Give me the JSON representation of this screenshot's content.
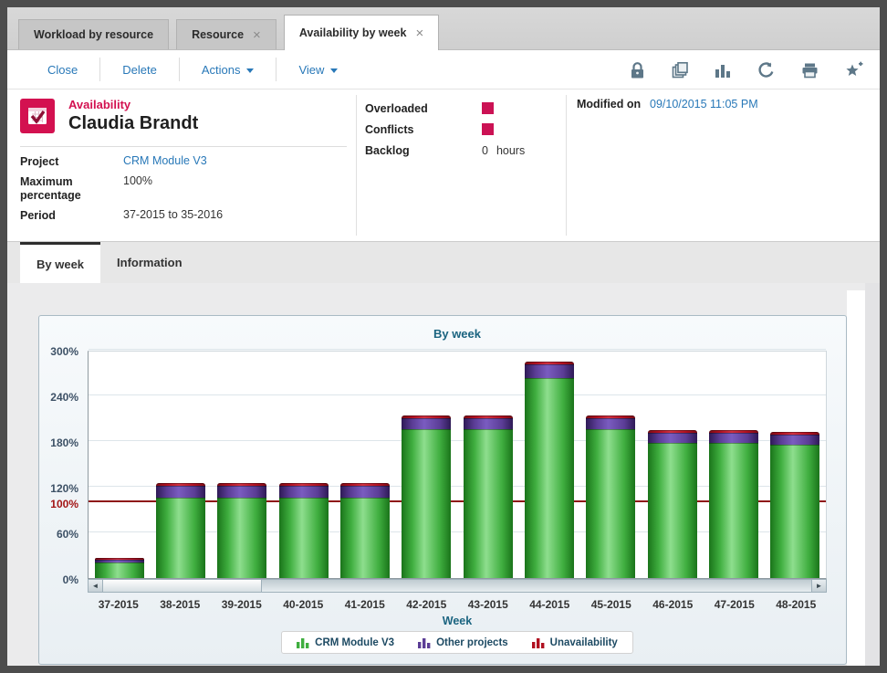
{
  "tabs": [
    {
      "label": "Workload by resource",
      "closable": false,
      "active": false
    },
    {
      "label": "Resource",
      "closable": true,
      "active": false
    },
    {
      "label": "Availability by week",
      "closable": true,
      "active": true
    }
  ],
  "glyphs": {
    "tab_close": "×",
    "scroll_left": "◄",
    "scroll_right": "►"
  },
  "toolbar": {
    "buttons": [
      {
        "label": "Close",
        "dropdown": false
      },
      {
        "label": "Delete",
        "dropdown": false
      },
      {
        "label": "Actions",
        "dropdown": true
      },
      {
        "label": "View",
        "dropdown": true
      }
    ],
    "icons": [
      "lock-icon",
      "copy-icon",
      "chart-icon",
      "undo-icon",
      "print-icon",
      "star-plus-icon"
    ]
  },
  "header": {
    "type_label": "Availability",
    "title": "Claudia Brandt",
    "fields": [
      {
        "label": "Project",
        "value": "CRM Module V3",
        "is_link": true
      },
      {
        "label": "Maximum percentage",
        "value": "100%",
        "is_link": false
      },
      {
        "label": "Period",
        "value": "37-2015 to 35-2016",
        "is_link": false
      }
    ],
    "status": [
      {
        "label": "Overloaded",
        "type": "flag"
      },
      {
        "label": "Conflicts",
        "type": "flag"
      },
      {
        "label": "Backlog",
        "value": "0",
        "unit": "hours"
      }
    ],
    "modified": {
      "label": "Modified on",
      "value": "09/10/2015 11:05 PM"
    }
  },
  "subtabs": [
    {
      "label": "By week",
      "active": true
    },
    {
      "label": "Information",
      "active": false
    }
  ],
  "colors": {
    "accent_crimson": "#d31150",
    "flag_square": "#cb1254",
    "link_blue": "#2878b8",
    "reference_red": "#8e1717",
    "title_teal": "#1b6480"
  },
  "chart_data": {
    "type": "bar",
    "stacked": true,
    "title": "By week",
    "xlabel": "Week",
    "ylabel": "",
    "ylim": [
      0,
      300
    ],
    "yticks": [
      0,
      60,
      100,
      120,
      180,
      240,
      300
    ],
    "ytick_suffix": "%",
    "grid": true,
    "legend_position": "bottom",
    "reference_line": {
      "value": 100,
      "color": "#8e1717"
    },
    "categories": [
      "37-2015",
      "38-2015",
      "39-2015",
      "40-2015",
      "41-2015",
      "42-2015",
      "43-2015",
      "44-2015",
      "45-2015",
      "46-2015",
      "47-2015",
      "48-2015"
    ],
    "series": [
      {
        "name": "CRM Module V3",
        "color": "#3fae3f",
        "color_light": "#8ede8e",
        "color_dark": "#1a741a",
        "values": [
          20,
          106,
          106,
          106,
          106,
          196,
          196,
          263,
          196,
          178,
          178,
          175
        ]
      },
      {
        "name": "Other projects",
        "color": "#5b3d96",
        "color_light": "#7a5cc0",
        "color_dark": "#2e1a56",
        "values": [
          4,
          15,
          15,
          15,
          15,
          14,
          14,
          18,
          14,
          13,
          13,
          13
        ]
      },
      {
        "name": "Unavailability",
        "color": "#b01020",
        "color_light": "#d03040",
        "color_dark": "#7d0a14",
        "values": [
          3,
          4,
          4,
          4,
          4,
          4,
          4,
          4,
          4,
          4,
          4,
          4
        ]
      }
    ]
  }
}
